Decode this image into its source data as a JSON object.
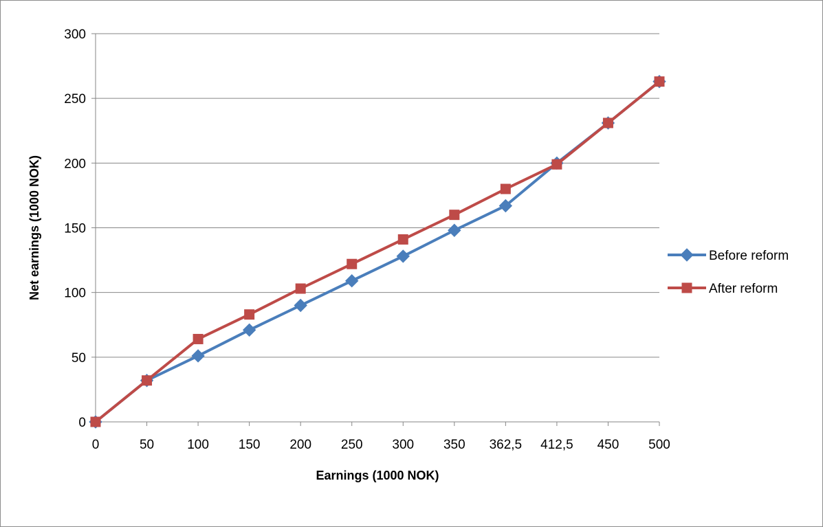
{
  "chart_data": {
    "type": "line",
    "categories": [
      "0",
      "50",
      "100",
      "150",
      "200",
      "250",
      "300",
      "350",
      "362,5",
      "412,5",
      "450",
      "500"
    ],
    "series": [
      {
        "name": "Before reform",
        "color": "#4a7ebb",
        "marker": "diamond",
        "values": [
          0,
          32,
          51,
          71,
          90,
          109,
          128,
          148,
          167,
          200,
          231,
          263
        ]
      },
      {
        "name": "After reform",
        "color": "#be4b48",
        "marker": "square",
        "values": [
          0,
          32,
          64,
          83,
          103,
          122,
          141,
          160,
          180,
          199,
          231,
          263
        ]
      }
    ],
    "xlabel": "Earnings (1000 NOK)",
    "ylabel": "Net earnings (1000 NOK)",
    "ylim": [
      0,
      300
    ],
    "yticks": [
      0,
      50,
      100,
      150,
      200,
      250,
      300
    ],
    "grid": true,
    "legend_position": "right"
  }
}
